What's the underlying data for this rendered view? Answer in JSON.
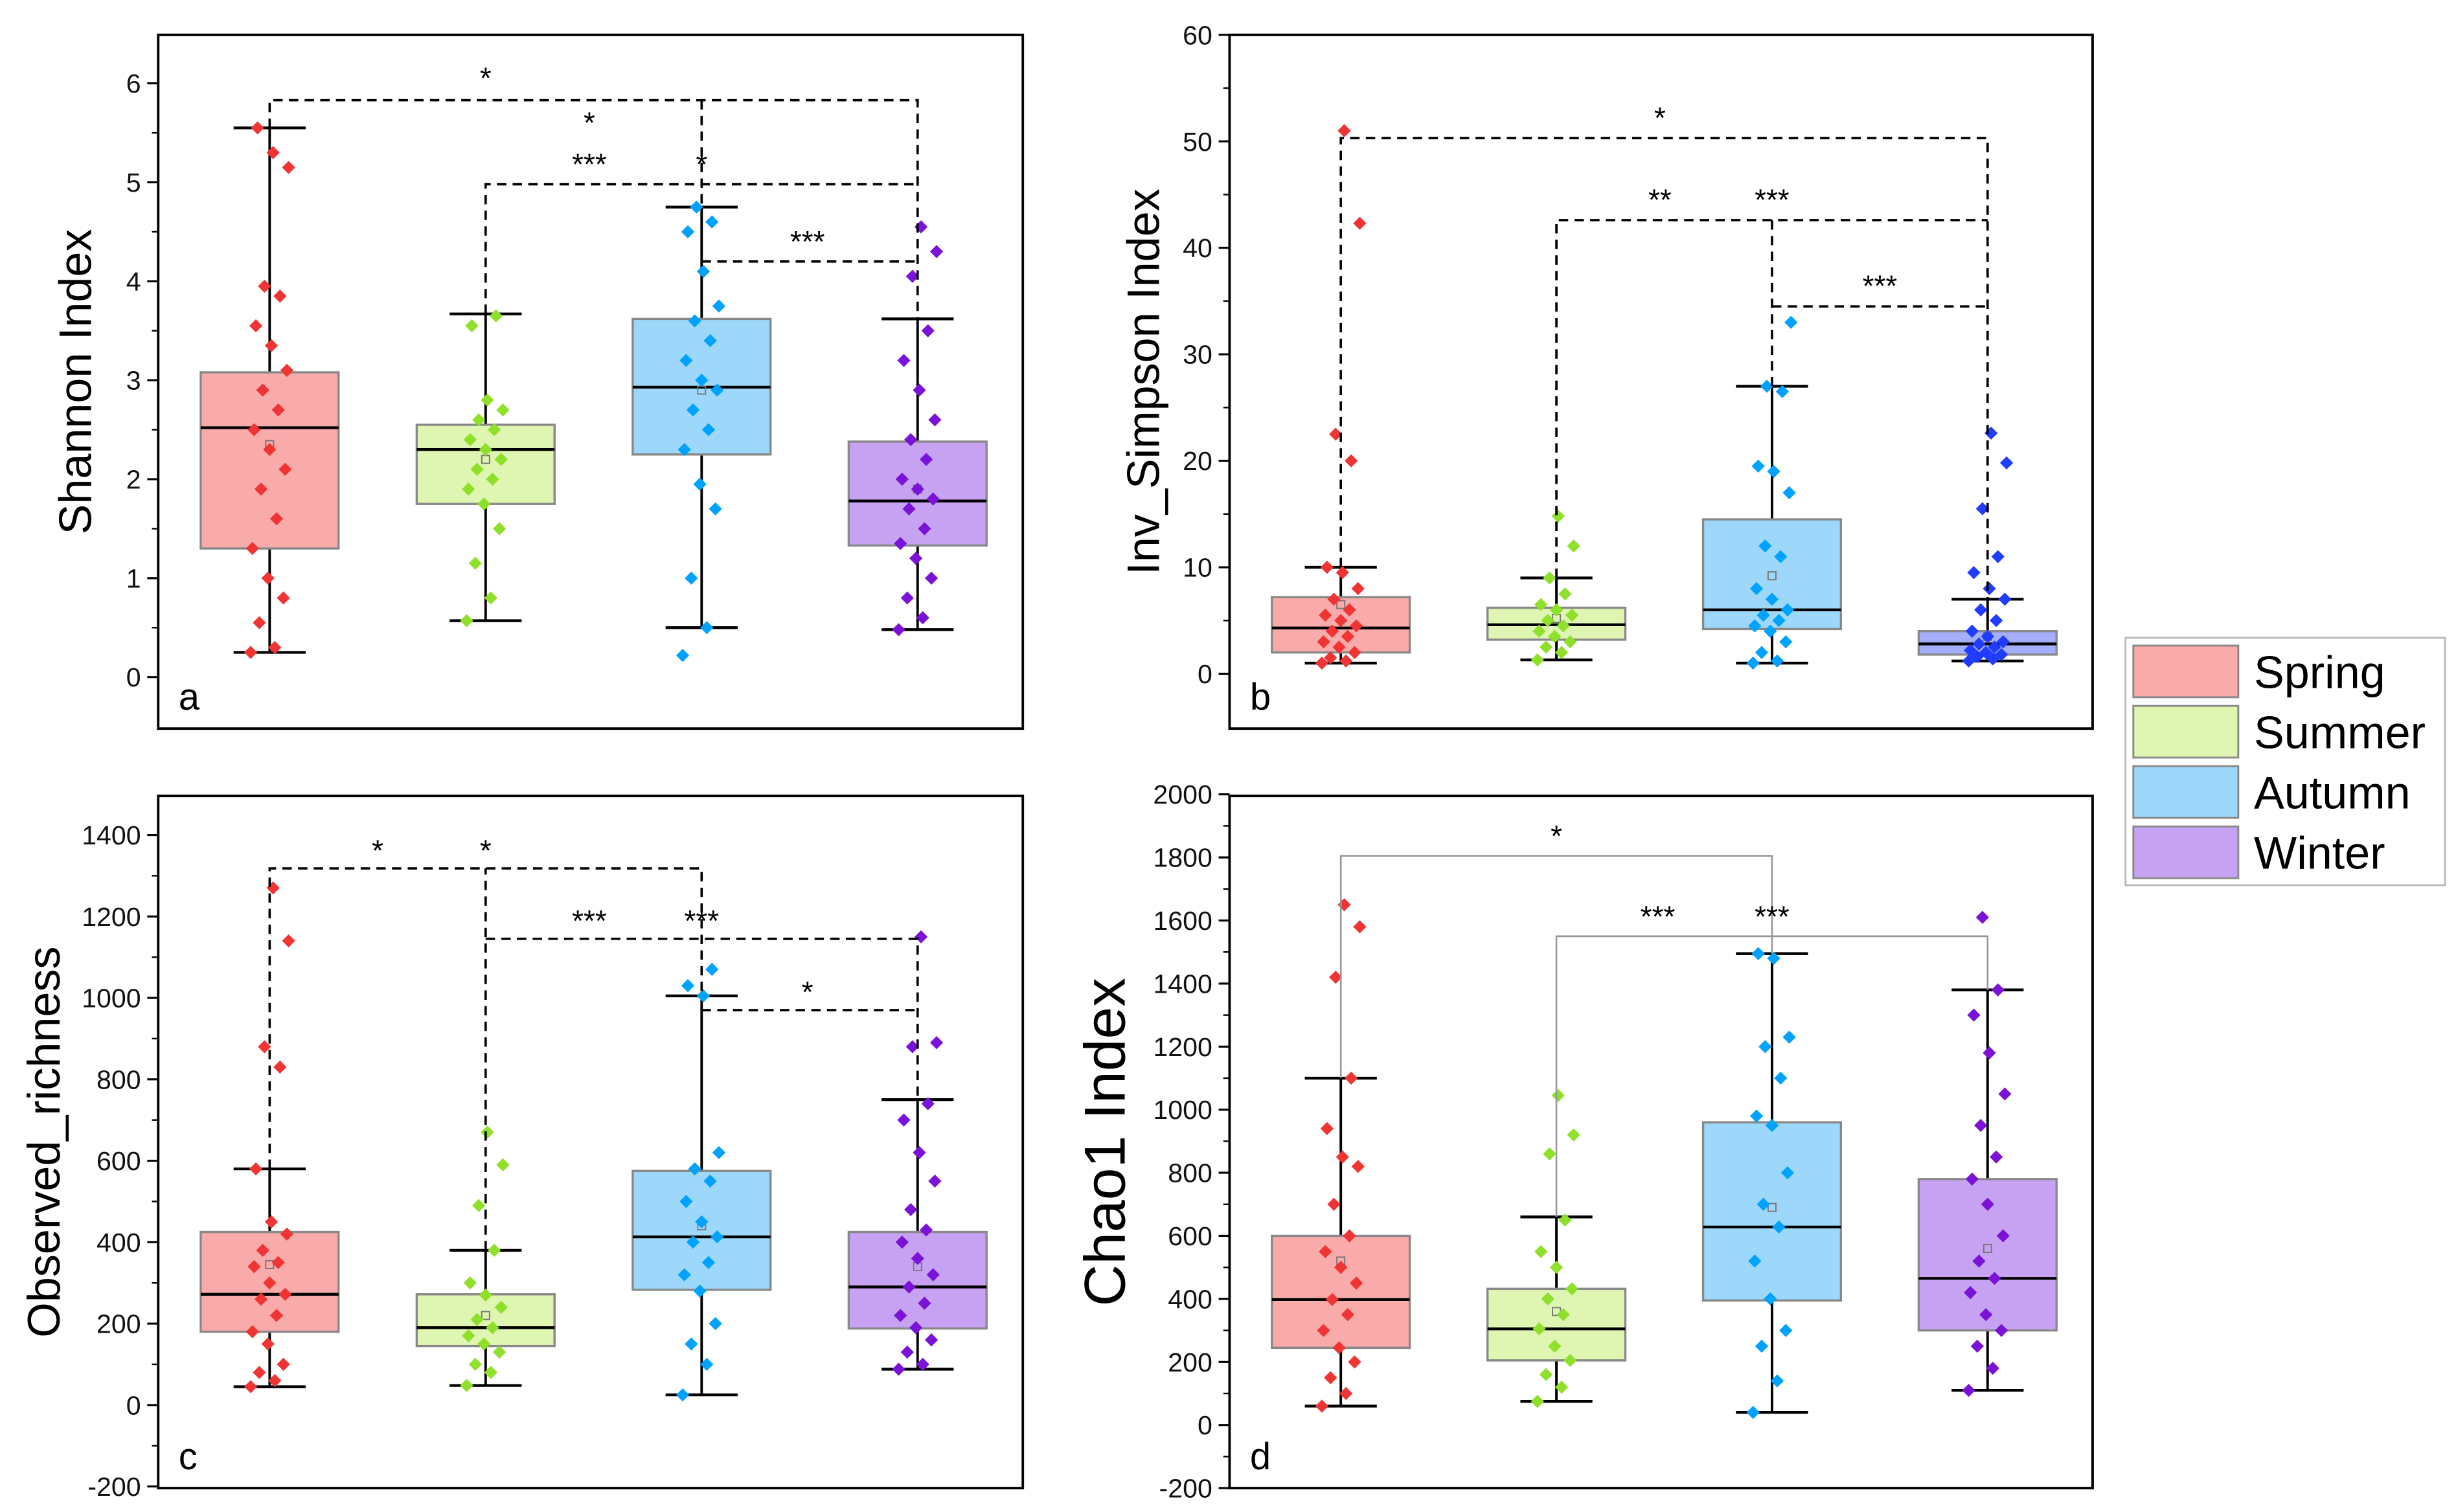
{
  "legend": {
    "placement": "right",
    "items": [
      {
        "label": "Spring",
        "fill": "#f9aaaa",
        "point": "#f03434"
      },
      {
        "label": "Summer",
        "fill": "#dff5b2",
        "point": "#8fe02a"
      },
      {
        "label": "Autumn",
        "fill": "#9dd8fb",
        "point": "#00a2ff"
      },
      {
        "label": "Winter",
        "fill": "#c7a2f2",
        "point": "#7a12d8"
      }
    ]
  },
  "chart_data": [
    {
      "type": "box",
      "panel_letter": "a",
      "ylabel": "Shannon Index",
      "ylim": [
        -0.52,
        6.49
      ],
      "yticks": [
        0,
        1,
        2,
        3,
        4,
        5,
        6
      ],
      "bracket_style": "dashed",
      "groups": [
        {
          "name": "Spring",
          "min": 0.25,
          "q1": 1.3,
          "median": 2.52,
          "q3": 3.08,
          "max": 5.55,
          "mean": 2.35,
          "points": [
            0.25,
            0.3,
            0.55,
            0.8,
            1.0,
            1.3,
            1.6,
            1.9,
            2.1,
            2.3,
            2.5,
            2.7,
            2.9,
            3.1,
            3.35,
            3.55,
            3.85,
            3.95,
            5.15,
            5.3,
            5.55
          ]
        },
        {
          "name": "Summer",
          "min": 0.57,
          "q1": 1.75,
          "median": 2.3,
          "q3": 2.55,
          "max": 3.67,
          "mean": 2.2,
          "points": [
            0.57,
            0.8,
            1.15,
            1.5,
            1.75,
            1.9,
            2.0,
            2.1,
            2.2,
            2.3,
            2.4,
            2.5,
            2.6,
            2.7,
            2.8,
            3.55,
            3.65
          ]
        },
        {
          "name": "Autumn",
          "min": 0.5,
          "q1": 2.25,
          "median": 2.93,
          "q3": 3.62,
          "max": 4.75,
          "mean": 2.9,
          "points": [
            0.22,
            0.5,
            1.0,
            1.7,
            1.95,
            2.3,
            2.5,
            2.7,
            2.9,
            3.0,
            3.2,
            3.4,
            3.6,
            3.75,
            4.1,
            4.5,
            4.6,
            4.75
          ]
        },
        {
          "name": "Winter",
          "min": 0.48,
          "q1": 1.33,
          "median": 1.78,
          "q3": 2.38,
          "max": 3.62,
          "mean": 1.9,
          "points": [
            0.48,
            0.6,
            0.8,
            1.0,
            1.2,
            1.35,
            1.5,
            1.7,
            1.8,
            1.9,
            2.0,
            2.2,
            2.4,
            2.6,
            2.9,
            3.2,
            3.5,
            4.05,
            4.3,
            4.55
          ]
        }
      ],
      "brackets": [
        {
          "path": [
            [
              1,
              5.55
            ],
            [
              1,
              5.83
            ],
            [
              4,
              5.83
            ],
            [
              4,
              3.62
            ]
          ]
        },
        {
          "path": [
            [
              3,
              5.83
            ],
            [
              3,
              4.75
            ]
          ]
        },
        {
          "path": [
            [
              2,
              3.67
            ],
            [
              2,
              4.98
            ],
            [
              4,
              4.98
            ]
          ]
        },
        {
          "path": [
            [
              3,
              4.2
            ],
            [
              4,
              4.2
            ]
          ]
        }
      ],
      "annotations": [
        {
          "text": "*",
          "x": 2.0,
          "y": 5.9
        },
        {
          "text": "*",
          "x": 2.48,
          "y": 5.45
        },
        {
          "text": "***",
          "x": 2.48,
          "y": 5.03
        },
        {
          "text": "*",
          "x": 3.0,
          "y": 5.03
        },
        {
          "text": "***",
          "x": 3.49,
          "y": 4.25
        }
      ]
    },
    {
      "type": "box",
      "panel_letter": "b",
      "ylabel": "Inv_Simpson Index",
      "ylim": [
        -5.15,
        60
      ],
      "yticks": [
        0,
        10,
        20,
        30,
        40,
        50,
        60
      ],
      "bracket_style": "dashed",
      "groups": [
        {
          "name": "Spring",
          "min": 1,
          "q1": 2,
          "median": 4.3,
          "q3": 7.2,
          "max": 10,
          "mean": 6.5,
          "points": [
            1,
            1.2,
            1.5,
            2,
            2.5,
            3,
            3.5,
            4,
            4.5,
            5,
            5.5,
            6,
            7,
            8,
            9.5,
            10,
            20,
            22.5,
            42.3,
            51
          ]
        },
        {
          "name": "Summer",
          "min": 1.3,
          "q1": 3.2,
          "median": 4.6,
          "q3": 6.2,
          "max": 9,
          "mean": 5.2,
          "points": [
            1.3,
            2,
            2.5,
            3,
            3.5,
            4,
            4.5,
            5,
            5.5,
            6,
            6.5,
            7.5,
            9,
            12,
            14.8
          ]
        },
        {
          "name": "Autumn",
          "min": 1,
          "q1": 4.2,
          "median": 6,
          "q3": 14.5,
          "max": 27,
          "mean": 9.2,
          "points": [
            1,
            1.2,
            2,
            3,
            4,
            4.5,
            5,
            5.5,
            6,
            7,
            8,
            11,
            12,
            17,
            19,
            19.5,
            26.5,
            27,
            33
          ]
        },
        {
          "name": "Winter",
          "min": 1.2,
          "q1": 1.8,
          "median": 2.8,
          "q3": 4,
          "max": 7,
          "mean": 3.5,
          "points": [
            1.2,
            1.4,
            1.6,
            1.8,
            2,
            2.2,
            2.5,
            2.8,
            3,
            3.5,
            4,
            5,
            6,
            7,
            8,
            9.5,
            11,
            15.5,
            19.8,
            22.6
          ]
        }
      ],
      "brackets": [
        {
          "path": [
            [
              1,
              10
            ],
            [
              1,
              50.3
            ],
            [
              4,
              50.3
            ],
            [
              4,
              7
            ]
          ]
        },
        {
          "path": [
            [
              2,
              9
            ],
            [
              2,
              42.6
            ],
            [
              4,
              42.6
            ]
          ]
        },
        {
          "path": [
            [
              3,
              27
            ],
            [
              3,
              42.6
            ]
          ]
        },
        {
          "path": [
            [
              3,
              34.5
            ],
            [
              4,
              34.5
            ]
          ]
        }
      ],
      "annotations": [
        {
          "text": "*",
          "x": 2.48,
          "y": 50.8
        },
        {
          "text": "**",
          "x": 2.48,
          "y": 43.1
        },
        {
          "text": "***",
          "x": 3.0,
          "y": 43.1
        },
        {
          "text": "***",
          "x": 3.5,
          "y": 35.0
        }
      ]
    },
    {
      "type": "box",
      "panel_letter": "c",
      "ylabel": "Observed_richness",
      "ylim": [
        -204,
        1496
      ],
      "yticks": [
        -200,
        0,
        200,
        400,
        600,
        800,
        1000,
        1200,
        1400
      ],
      "bracket_style": "dashed",
      "groups": [
        {
          "name": "Spring",
          "min": 45,
          "q1": 180,
          "median": 272,
          "q3": 425,
          "max": 580,
          "mean": 345,
          "points": [
            45,
            60,
            80,
            100,
            150,
            180,
            220,
            260,
            272,
            300,
            340,
            350,
            380,
            420,
            450,
            580,
            830,
            880,
            1140,
            1270
          ]
        },
        {
          "name": "Summer",
          "min": 48,
          "q1": 145,
          "median": 190,
          "q3": 272,
          "max": 380,
          "mean": 220,
          "points": [
            48,
            80,
            100,
            130,
            150,
            170,
            190,
            210,
            240,
            270,
            300,
            380,
            490,
            590,
            670
          ]
        },
        {
          "name": "Autumn",
          "min": 25,
          "q1": 283,
          "median": 413,
          "q3": 575,
          "max": 1005,
          "mean": 440,
          "points": [
            25,
            100,
            150,
            200,
            280,
            320,
            350,
            400,
            413,
            450,
            500,
            550,
            580,
            620,
            1005,
            1030,
            1070
          ]
        },
        {
          "name": "Winter",
          "min": 88,
          "q1": 188,
          "median": 290,
          "q3": 425,
          "max": 750,
          "mean": 340,
          "points": [
            88,
            100,
            130,
            160,
            190,
            220,
            250,
            290,
            320,
            360,
            400,
            430,
            480,
            550,
            620,
            700,
            740,
            880,
            890,
            1150
          ]
        }
      ],
      "brackets": [
        {
          "path": [
            [
              1,
              580
            ],
            [
              1,
              1318
            ],
            [
              3,
              1318
            ],
            [
              3,
              1005
            ]
          ]
        },
        {
          "path": [
            [
              2,
              380
            ],
            [
              2,
              1318
            ]
          ]
        },
        {
          "path": [
            [
              2,
              1145
            ],
            [
              4,
              1145
            ],
            [
              4,
              750
            ]
          ]
        },
        {
          "path": [
            [
              3,
              970
            ],
            [
              4,
              970
            ]
          ]
        }
      ],
      "annotations": [
        {
          "text": "*",
          "x": 1.5,
          "y": 1325
        },
        {
          "text": "*",
          "x": 2.0,
          "y": 1325
        },
        {
          "text": "***",
          "x": 2.48,
          "y": 1152
        },
        {
          "text": "***",
          "x": 3.0,
          "y": 1152
        },
        {
          "text": "*",
          "x": 3.49,
          "y": 977
        }
      ]
    },
    {
      "type": "box",
      "panel_letter": "d",
      "ylabel": "Chao1 Index",
      "ylim": [
        -200,
        1995
      ],
      "yticks": [
        -200,
        0,
        200,
        400,
        600,
        800,
        1000,
        1200,
        1400,
        1600,
        1800,
        2000
      ],
      "bracket_style": "solid",
      "groups": [
        {
          "name": "Spring",
          "min": 60,
          "q1": 245,
          "median": 398,
          "q3": 600,
          "max": 1100,
          "mean": 520,
          "points": [
            60,
            100,
            150,
            200,
            245,
            300,
            350,
            398,
            450,
            500,
            550,
            600,
            700,
            820,
            850,
            940,
            1100,
            1420,
            1580,
            1650
          ]
        },
        {
          "name": "Summer",
          "min": 75,
          "q1": 205,
          "median": 305,
          "q3": 432,
          "max": 660,
          "mean": 360,
          "points": [
            75,
            120,
            160,
            205,
            250,
            305,
            350,
            400,
            432,
            500,
            550,
            650,
            860,
            920,
            1045
          ]
        },
        {
          "name": "Autumn",
          "min": 40,
          "q1": 395,
          "median": 628,
          "q3": 960,
          "max": 1495,
          "mean": 690,
          "points": [
            40,
            140,
            250,
            300,
            400,
            520,
            628,
            700,
            800,
            950,
            980,
            1100,
            1200,
            1230,
            1480,
            1495
          ]
        },
        {
          "name": "Winter",
          "min": 110,
          "q1": 300,
          "median": 465,
          "q3": 780,
          "max": 1380,
          "mean": 560,
          "points": [
            110,
            180,
            250,
            300,
            350,
            420,
            465,
            520,
            600,
            700,
            780,
            850,
            950,
            1050,
            1180,
            1300,
            1380,
            1610
          ]
        }
      ],
      "brackets": [
        {
          "path": [
            [
              1,
              1100
            ],
            [
              1,
              1805
            ],
            [
              3,
              1805
            ],
            [
              3,
              1495
            ]
          ]
        },
        {
          "path": [
            [
              2,
              660
            ],
            [
              2,
              1550
            ],
            [
              4,
              1550
            ],
            [
              4,
              1380
            ]
          ]
        }
      ],
      "annotations": [
        {
          "text": "*",
          "x": 2.0,
          "y": 1820
        },
        {
          "text": "***",
          "x": 2.47,
          "y": 1565
        },
        {
          "text": "***",
          "x": 3.0,
          "y": 1565
        }
      ]
    }
  ]
}
